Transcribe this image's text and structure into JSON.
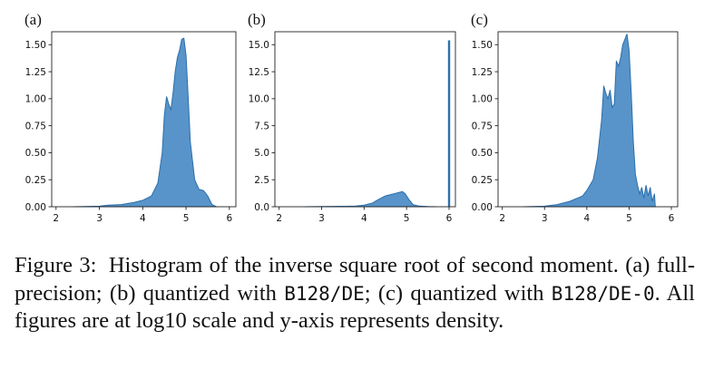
{
  "chart_data": [
    {
      "type": "area",
      "panel_label": "(a)",
      "x_ticks": [
        2,
        3,
        4,
        5,
        6
      ],
      "y_ticks": [
        "0.00",
        "0.25",
        "0.50",
        "0.75",
        "1.00",
        "1.25",
        "1.50"
      ],
      "xlim": [
        1.9,
        6.15
      ],
      "ylim": [
        0,
        1.62
      ],
      "grid": false,
      "color": "#4a8bc4",
      "line_color": "#2c6fad",
      "x": [
        2.4,
        3.0,
        3.2,
        3.5,
        3.8,
        4.0,
        4.2,
        4.35,
        4.45,
        4.5,
        4.55,
        4.6,
        4.65,
        4.7,
        4.75,
        4.8,
        4.85,
        4.9,
        4.95,
        5.0,
        5.05,
        5.1,
        5.2,
        5.3,
        5.4,
        5.5,
        5.6,
        5.7
      ],
      "y": [
        0,
        0.005,
        0.015,
        0.02,
        0.04,
        0.06,
        0.1,
        0.22,
        0.5,
        0.85,
        1.02,
        0.95,
        0.9,
        1.05,
        1.25,
        1.38,
        1.45,
        1.55,
        1.56,
        1.4,
        1.0,
        0.6,
        0.25,
        0.16,
        0.15,
        0.1,
        0.02,
        0
      ]
    },
    {
      "type": "area",
      "panel_label": "(b)",
      "x_ticks": [
        2,
        3,
        4,
        5,
        6
      ],
      "y_ticks": [
        "0.0",
        "2.5",
        "5.0",
        "7.5",
        "10.0",
        "12.5",
        "15.0"
      ],
      "xlim": [
        1.9,
        6.15
      ],
      "ylim": [
        0,
        16.2
      ],
      "grid": false,
      "color": "#4a8bc4",
      "line_color": "#2c6fad",
      "x": [
        2.6,
        3.0,
        3.5,
        3.8,
        4.0,
        4.2,
        4.35,
        4.5,
        4.6,
        4.7,
        4.8,
        4.9,
        4.97,
        5.05,
        5.15,
        5.3,
        5.5,
        5.7
      ],
      "y": [
        0,
        0.02,
        0.04,
        0.06,
        0.15,
        0.35,
        0.7,
        1.0,
        1.1,
        1.2,
        1.3,
        1.4,
        1.2,
        0.7,
        0.2,
        0.06,
        0.02,
        0
      ],
      "spike": {
        "x": 6.0,
        "y": 15.4
      }
    },
    {
      "type": "area",
      "panel_label": "(c)",
      "x_ticks": [
        2,
        3,
        4,
        5,
        6
      ],
      "y_ticks": [
        "0.00",
        "0.25",
        "0.50",
        "0.75",
        "1.00",
        "1.25",
        "1.50"
      ],
      "xlim": [
        1.9,
        6.15
      ],
      "ylim": [
        0,
        1.62
      ],
      "grid": false,
      "color": "#4a8bc4",
      "line_color": "#2c6fad",
      "x": [
        2.5,
        3.0,
        3.3,
        3.6,
        3.9,
        4.0,
        4.15,
        4.25,
        4.35,
        4.4,
        4.45,
        4.5,
        4.55,
        4.6,
        4.65,
        4.7,
        4.75,
        4.8,
        4.85,
        4.9,
        4.95,
        5.0,
        5.05,
        5.1,
        5.15,
        5.2,
        5.25,
        5.3,
        5.35,
        5.4,
        5.45,
        5.5,
        5.55,
        5.6,
        5.62
      ],
      "y": [
        0,
        0.005,
        0.02,
        0.05,
        0.1,
        0.15,
        0.25,
        0.45,
        0.8,
        1.12,
        1.05,
        1.0,
        1.08,
        0.92,
        0.95,
        1.35,
        1.3,
        1.38,
        1.5,
        1.55,
        1.6,
        1.45,
        1.05,
        0.6,
        0.3,
        0.2,
        0.12,
        0.18,
        0.08,
        0.2,
        0.1,
        0.18,
        0.05,
        0.12,
        0
      ]
    }
  ],
  "caption": {
    "label": "Figure 3:",
    "text_1": "Histogram of the inverse square root of second moment. (a) full-precision; (b) quantized with",
    "code_1": "B128/DE",
    "text_2": "; (c) quantized with",
    "code_2": "B128/DE-0",
    "text_3": ". All figures are at log10 scale and y-axis represents density."
  }
}
